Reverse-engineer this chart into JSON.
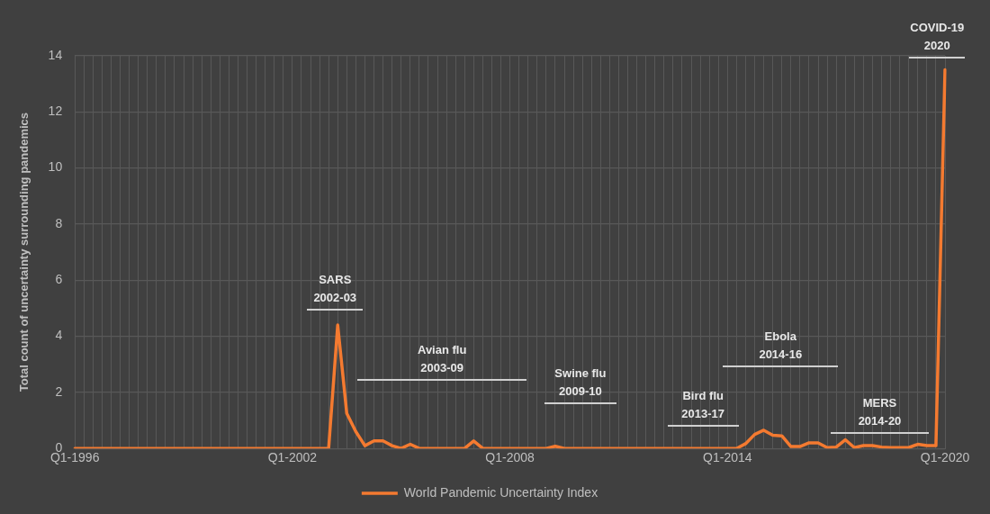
{
  "chart_data": {
    "type": "line",
    "ylabel": "Total count of uncertainty surrounding pandemics",
    "categories": [
      "Q1-1996",
      null,
      null,
      null,
      null,
      null,
      null,
      null,
      null,
      null,
      null,
      null,
      null,
      null,
      null,
      null,
      null,
      null,
      null,
      null,
      null,
      null,
      null,
      null,
      "Q1-2002",
      null,
      null,
      null,
      null,
      null,
      null,
      null,
      null,
      null,
      null,
      null,
      null,
      null,
      null,
      null,
      null,
      null,
      null,
      null,
      null,
      null,
      null,
      null,
      "Q1-2008",
      null,
      null,
      null,
      null,
      null,
      null,
      null,
      null,
      null,
      null,
      null,
      null,
      null,
      null,
      null,
      null,
      null,
      null,
      null,
      null,
      null,
      null,
      null,
      "Q1-2014",
      null,
      null,
      null,
      null,
      null,
      null,
      null,
      null,
      null,
      null,
      null,
      null,
      null,
      null,
      null,
      null,
      null,
      null,
      null,
      null,
      null,
      null,
      null,
      "Q1-2020"
    ],
    "series": [
      {
        "name": "World Pandemic Uncertainty Index",
        "color": "#f47a30",
        "values": [
          0,
          0,
          0,
          0,
          0,
          0,
          0,
          0,
          0,
          0,
          0,
          0,
          0,
          0,
          0,
          0,
          0,
          0,
          0,
          0,
          0,
          0,
          0,
          0,
          0,
          0,
          0,
          0,
          0,
          4.4,
          1.25,
          0.6,
          0.1,
          0.27,
          0.27,
          0.1,
          0,
          0.15,
          0,
          0,
          0,
          0,
          0,
          0,
          0.27,
          0,
          0,
          0,
          0,
          0,
          0,
          0,
          0,
          0.08,
          0,
          0,
          0,
          0,
          0,
          0,
          0,
          0,
          0,
          0,
          0,
          0,
          0,
          0,
          0,
          0,
          0,
          0,
          0,
          0,
          0.17,
          0.5,
          0.65,
          0.47,
          0.45,
          0.07,
          0.07,
          0.2,
          0.2,
          0.03,
          0.05,
          0.31,
          0.03,
          0.1,
          0.1,
          0.05,
          0.03,
          0.03,
          0.03,
          0.15,
          0.1,
          0.1,
          13.5
        ]
      }
    ],
    "ylim": [
      0,
      14
    ],
    "yticks": [
      0,
      2,
      4,
      6,
      8,
      10,
      12,
      14
    ],
    "grid": true,
    "legend": "bottom",
    "marker": "none",
    "line_style": "solid",
    "annotations": [
      "SARS\n2002-03",
      "Avian flu\n2003-09",
      "Swine flu\n2009-10",
      "Bird flu\n2013-17",
      "Ebola\n2014-16",
      "MERS\n2014-20",
      "COVID-19\n2020"
    ]
  }
}
